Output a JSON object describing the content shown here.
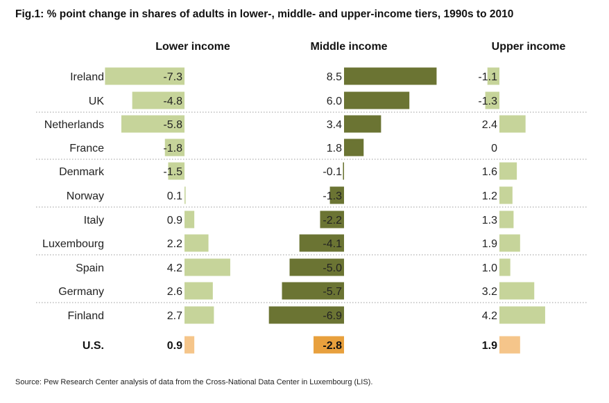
{
  "title": "Fig.1: % point change in shares of adults in lower-, middle- and upper-income tiers, 1990s to 2010",
  "source": "Source: Pew Research Center analysis of data from the Cross-National Data Center in Luxembourg (LIS).",
  "colors": {
    "lower_bar": "#c6d49a",
    "middle_bar": "#6b7433",
    "upper_bar": "#c6d49a",
    "us_light": "#f5c58a",
    "us_dark": "#e8a03d",
    "separator": "#999999"
  },
  "chart_data": {
    "type": "bar",
    "orientation": "horizontal",
    "title": "Fig.1: % point change in shares of adults in lower-, middle- and upper-income tiers, 1990s to 2010",
    "categories": [
      "Ireland",
      "UK",
      "Netherlands",
      "France",
      "Denmark",
      "Norway",
      "Italy",
      "Luxembourg",
      "Spain",
      "Germany",
      "Finland",
      "U.S."
    ],
    "value_labels": {
      "Lower income": [
        "-7.3",
        "-4.8",
        "-5.8",
        "-1.8",
        "-1.5",
        "0.1",
        "0.9",
        "2.2",
        "4.2",
        "2.6",
        "2.7",
        "0.9"
      ],
      "Middle income": [
        "8.5",
        "6.0",
        "3.4",
        "1.8",
        "-0.1",
        "-1.3",
        "-2.2",
        "-4.1",
        "-5.0",
        "-5.7",
        "-6.9",
        "-2.8"
      ],
      "Upper income": [
        "-1.1",
        "-1.3",
        "2.4",
        "0",
        "1.6",
        "1.2",
        "1.3",
        "1.9",
        "1.0",
        "3.2",
        "4.2",
        "1.9"
      ]
    },
    "series": [
      {
        "name": "Lower income",
        "values": [
          -7.3,
          -4.8,
          -5.8,
          -1.8,
          -1.5,
          0.1,
          0.9,
          2.2,
          4.2,
          2.6,
          2.7,
          0.9
        ]
      },
      {
        "name": "Middle income",
        "values": [
          8.5,
          6.0,
          3.4,
          1.8,
          -0.1,
          -1.3,
          -2.2,
          -4.1,
          -5.0,
          -5.7,
          -6.9,
          -2.8
        ]
      },
      {
        "name": "Upper income",
        "values": [
          -1.1,
          -1.3,
          2.4,
          0,
          1.6,
          1.2,
          1.3,
          1.9,
          1.0,
          3.2,
          4.2,
          1.9
        ]
      }
    ],
    "highlight_category": "U.S.",
    "grid": false,
    "legend": "none"
  }
}
